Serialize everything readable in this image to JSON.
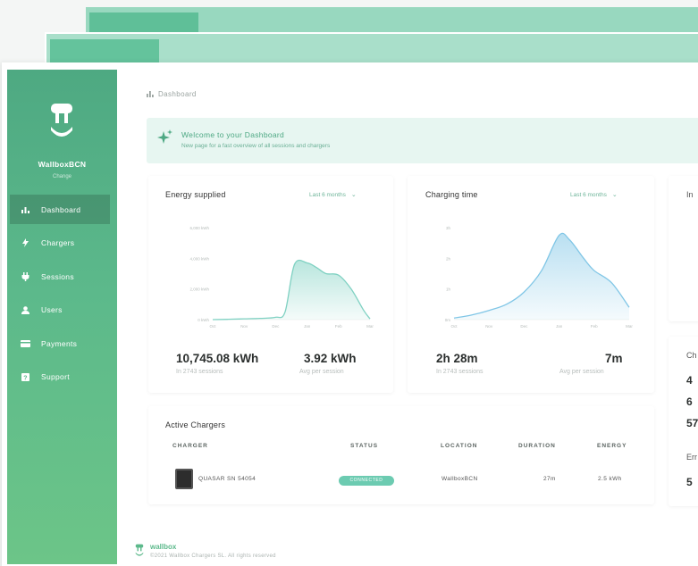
{
  "sidebar": {
    "brand": "WallboxBCN",
    "brand_sub": "Change",
    "items": [
      {
        "label": "Dashboard",
        "icon": "chart-bar-icon"
      },
      {
        "label": "Chargers",
        "icon": "bolt-icon"
      },
      {
        "label": "Sessions",
        "icon": "plug-icon"
      },
      {
        "label": "Users",
        "icon": "user-icon"
      },
      {
        "label": "Payments",
        "icon": "credit-card-icon"
      },
      {
        "label": "Support",
        "icon": "help-icon"
      }
    ]
  },
  "breadcrumb": "Dashboard",
  "welcome": {
    "title": "Welcome to your Dashboard",
    "subtitle": "New page for a fast overview of all sessions and chargers"
  },
  "energy_card": {
    "title": "Energy supplied",
    "range": "Last 6 months",
    "total": "10,745.08 kWh",
    "total_sub": "In 2743 sessions",
    "avg": "3.92 kWh",
    "avg_sub": "Avg per session"
  },
  "charging_card": {
    "title": "Charging time",
    "range": "Last 6 months",
    "total": "2h 28m",
    "total_sub": "In 2743 sessions",
    "avg": "7m",
    "avg_sub": "Avg per session"
  },
  "active_chargers": {
    "title": "Active Chargers",
    "headers": [
      "CHARGER",
      "STATUS",
      "LOCATION",
      "DURATION",
      "ENERGY"
    ],
    "rows": [
      {
        "charger": "QUASAR SN 54054",
        "status": "CONNECTED",
        "location": "WallboxBCN",
        "duration": "27m",
        "energy": "2.5 kWh"
      }
    ]
  },
  "right_partial": {
    "card1_title": "In",
    "card2_title": "Ch",
    "values": [
      "4",
      "6",
      "57"
    ],
    "card3_title": "Err",
    "value2": "5"
  },
  "footer": {
    "brand": "wallbox",
    "copyright": "©2021 Wallbox Chargers SL. All rights reserved"
  },
  "colors": {
    "accent": "#5cb98b",
    "chart_energy": "#7fd1c2",
    "chart_time": "#80c6e6",
    "badge": "#6ccbb1"
  },
  "chart_data": [
    {
      "type": "area",
      "title": "Energy supplied",
      "categories": [
        "Oct",
        "Nov",
        "Dec",
        "Jan",
        "Feb",
        "Mar"
      ],
      "y_ticks": [
        "0 kWh",
        "2,000 kWh",
        "4,000 kWh",
        "6,000 kWh"
      ],
      "ylim": [
        0,
        6000
      ],
      "x": [
        0,
        0.5,
        1,
        1.5,
        2,
        2.3,
        2.6,
        3,
        3.3,
        3.6,
        4,
        4.4,
        4.8,
        5
      ],
      "values": [
        0,
        20,
        50,
        80,
        150,
        500,
        3600,
        3700,
        3400,
        3000,
        2900,
        2000,
        600,
        50
      ]
    },
    {
      "type": "area",
      "title": "Charging time",
      "categories": [
        "Oct",
        "Nov",
        "Dec",
        "Jan",
        "Feb",
        "Mar"
      ],
      "y_ticks": [
        "0m",
        "1h",
        "2h",
        "3h"
      ],
      "ylim": [
        0,
        3
      ],
      "x": [
        0,
        0.5,
        1,
        1.5,
        2,
        2.5,
        3,
        3.3,
        3.7,
        4,
        4.5,
        5
      ],
      "values": [
        0.05,
        0.15,
        0.3,
        0.5,
        0.9,
        1.6,
        2.75,
        2.6,
        2.0,
        1.6,
        1.2,
        0.4
      ]
    }
  ]
}
